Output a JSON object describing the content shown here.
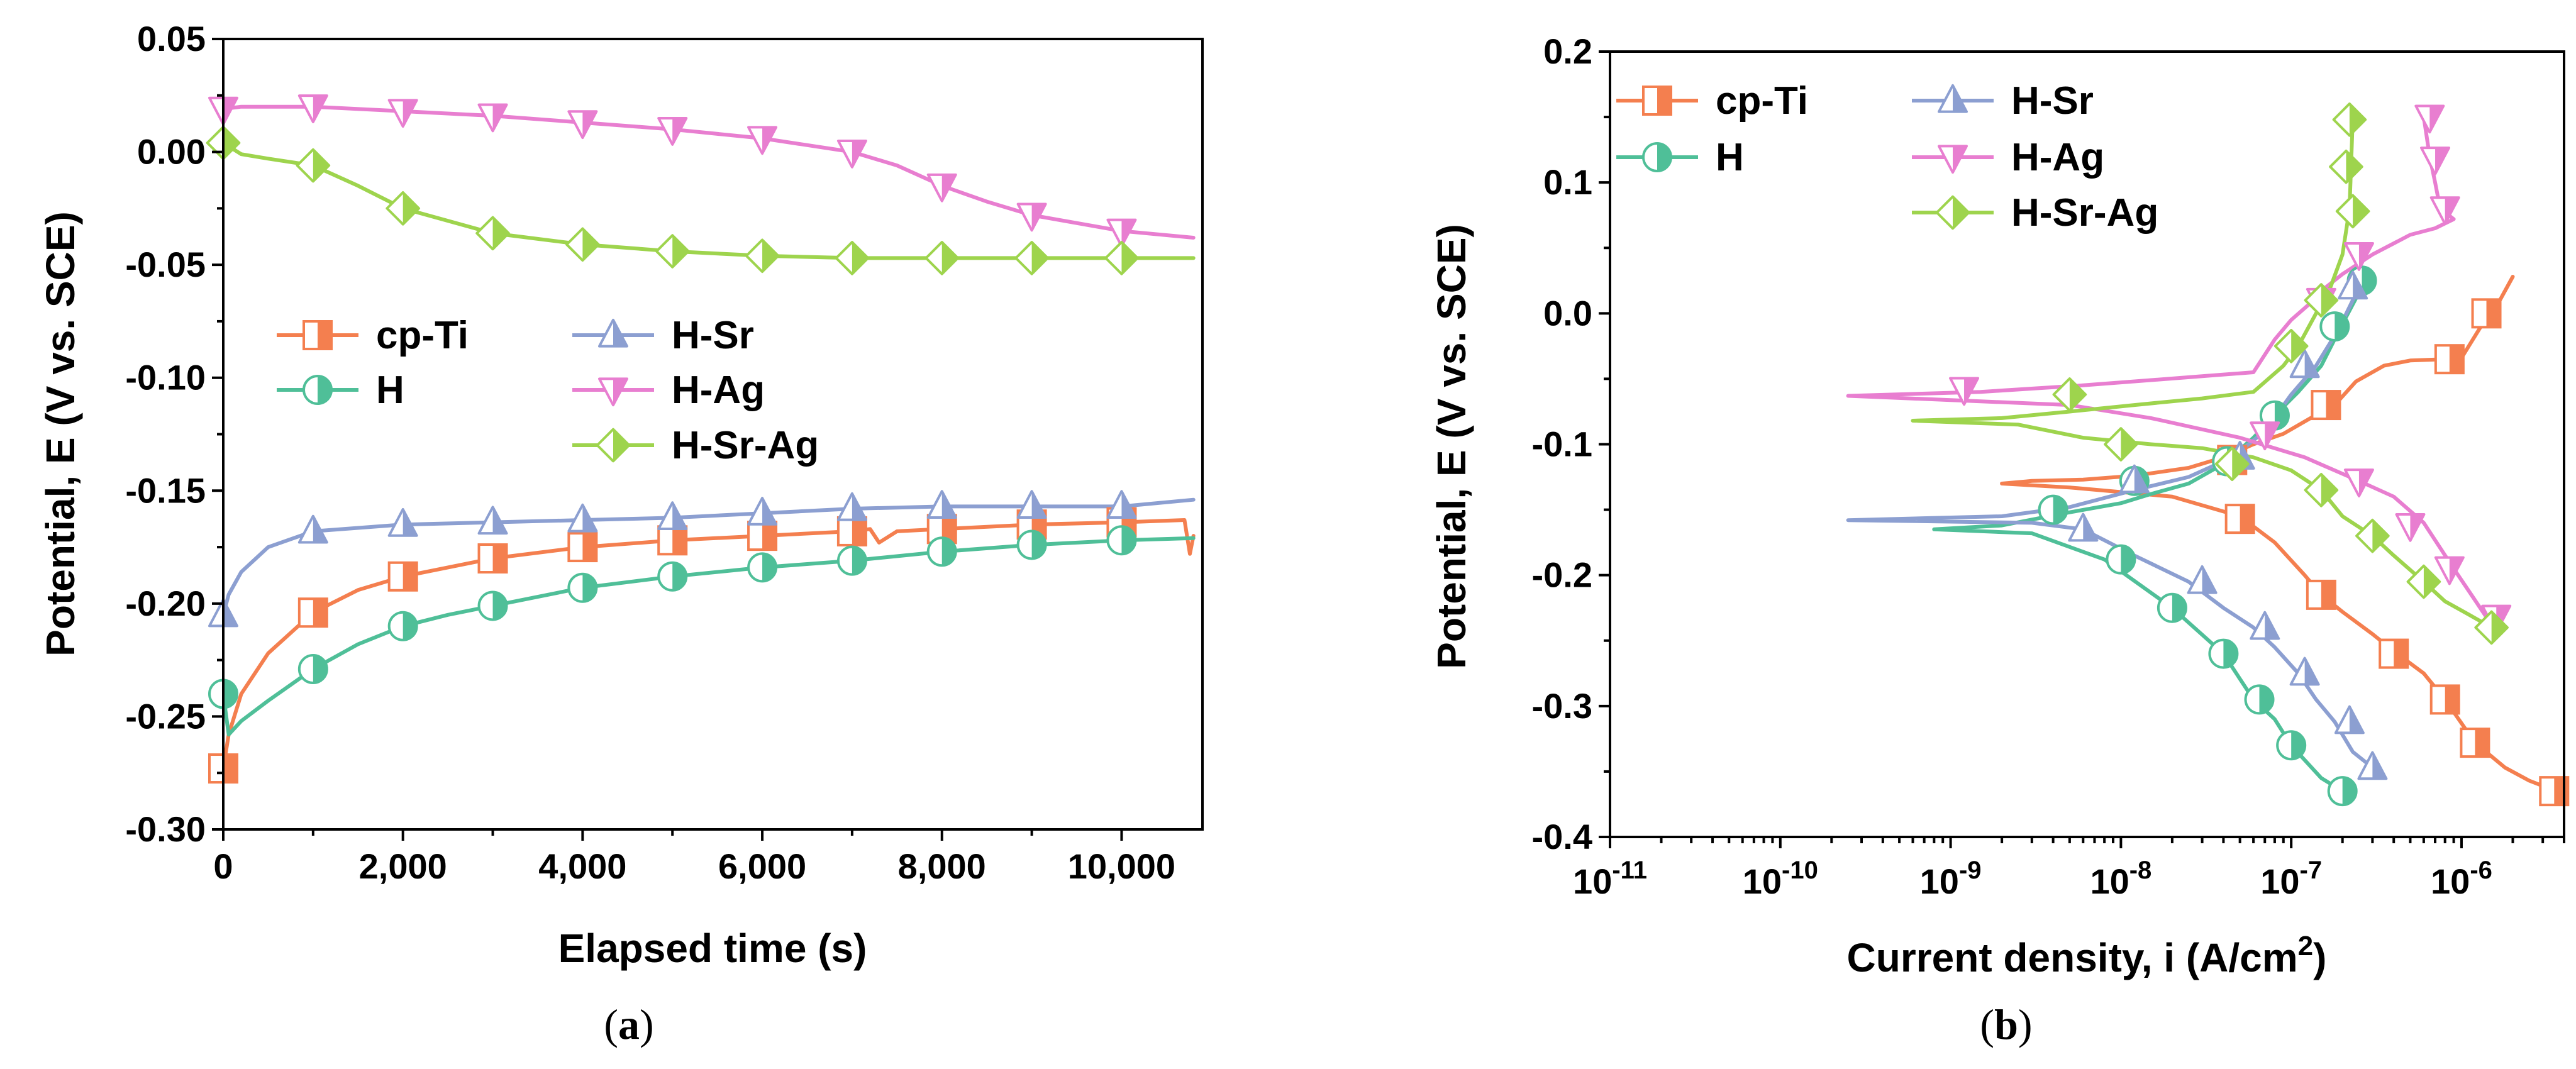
{
  "colors": {
    "cp-Ti": "#f47f4f",
    "H": "#4fbf98",
    "H-Sr": "#8c9fd1",
    "H-Ag": "#e87ed0",
    "H-Sr-Ag": "#9ed44d"
  },
  "panels": [
    {
      "label_open": "(",
      "label_letter": "a",
      "label_close": ")"
    },
    {
      "label_open": "(",
      "label_letter": "b",
      "label_close": ")"
    }
  ],
  "chart_data": [
    {
      "type": "line",
      "xlabel": "Elapsed time (s)",
      "ylabel": "Potential, E (V vs. SCE)",
      "xlim": [
        0,
        10900
      ],
      "ylim": [
        -0.3,
        0.05
      ],
      "xticks": [
        0,
        2000,
        4000,
        6000,
        8000,
        10000
      ],
      "xtick_labels": [
        "0",
        "2,000",
        "4,000",
        "6,000",
        "8,000",
        "10,000"
      ],
      "yticks": [
        -0.3,
        -0.25,
        -0.2,
        -0.15,
        -0.1,
        -0.05,
        0.0,
        0.05
      ],
      "ytick_labels": [
        "-0.30",
        "-0.25",
        "-0.20",
        "-0.15",
        "-0.10",
        "-0.05",
        "0.00",
        "0.05"
      ],
      "grid": false,
      "legend_position": "center-left",
      "series": [
        {
          "name": "cp-Ti",
          "marker": "square",
          "x": [
            0,
            60,
            200,
            500,
            1000,
            1500,
            2000,
            3000,
            4000,
            5000,
            6000,
            7000,
            7200,
            7300,
            7500,
            8000,
            9000,
            10000,
            10700,
            10760,
            10800
          ],
          "y": [
            -0.273,
            -0.258,
            -0.24,
            -0.222,
            -0.204,
            -0.194,
            -0.188,
            -0.18,
            -0.175,
            -0.172,
            -0.17,
            -0.168,
            -0.167,
            -0.173,
            -0.168,
            -0.167,
            -0.165,
            -0.164,
            -0.163,
            -0.178,
            -0.17
          ]
        },
        {
          "name": "H",
          "marker": "circle",
          "x": [
            0,
            60,
            200,
            500,
            1000,
            1500,
            2000,
            2500,
            3000,
            4000,
            5000,
            6000,
            7000,
            8000,
            9000,
            10000,
            10800
          ],
          "y": [
            -0.24,
            -0.258,
            -0.252,
            -0.243,
            -0.229,
            -0.218,
            -0.21,
            -0.205,
            -0.201,
            -0.193,
            -0.188,
            -0.184,
            -0.181,
            -0.177,
            -0.174,
            -0.172,
            -0.171
          ]
        },
        {
          "name": "H-Sr",
          "marker": "triangle-up",
          "x": [
            0,
            60,
            200,
            500,
            1000,
            2000,
            3000,
            4000,
            5000,
            6000,
            7000,
            8000,
            9000,
            10000,
            10800
          ],
          "y": [
            -0.205,
            -0.196,
            -0.186,
            -0.175,
            -0.168,
            -0.165,
            -0.164,
            -0.163,
            -0.162,
            -0.16,
            -0.158,
            -0.157,
            -0.157,
            -0.157,
            -0.154
          ]
        },
        {
          "name": "H-Ag",
          "marker": "triangle-down",
          "x": [
            0,
            200,
            1000,
            2000,
            3000,
            4000,
            5000,
            6000,
            7000,
            7500,
            8000,
            8500,
            9000,
            10000,
            10800
          ],
          "y": [
            0.019,
            0.02,
            0.02,
            0.018,
            0.016,
            0.013,
            0.01,
            0.006,
            0.0,
            -0.006,
            -0.015,
            -0.022,
            -0.028,
            -0.035,
            -0.038
          ]
        },
        {
          "name": "H-Sr-Ag",
          "marker": "diamond",
          "x": [
            0,
            200,
            500,
            1000,
            1500,
            2000,
            3000,
            4000,
            5000,
            6000,
            7000,
            8000,
            9000,
            10000,
            10800
          ],
          "y": [
            0.004,
            -0.001,
            -0.003,
            -0.006,
            -0.015,
            -0.025,
            -0.036,
            -0.041,
            -0.044,
            -0.046,
            -0.047,
            -0.047,
            -0.047,
            -0.047,
            -0.047
          ]
        }
      ],
      "markers": {
        "cp-Ti": {
          "x": [
            0,
            1000,
            2000,
            3000,
            4000,
            5000,
            6000,
            7000,
            8000,
            9000,
            10000
          ],
          "y": [
            -0.273,
            -0.204,
            -0.188,
            -0.18,
            -0.175,
            -0.172,
            -0.17,
            -0.168,
            -0.167,
            -0.165,
            -0.164
          ]
        },
        "H": {
          "x": [
            0,
            1000,
            2000,
            3000,
            4000,
            5000,
            6000,
            7000,
            8000,
            9000,
            10000
          ],
          "y": [
            -0.24,
            -0.229,
            -0.21,
            -0.201,
            -0.193,
            -0.188,
            -0.184,
            -0.181,
            -0.177,
            -0.174,
            -0.172
          ]
        },
        "H-Sr": {
          "x": [
            0,
            1000,
            2000,
            3000,
            4000,
            5000,
            6000,
            7000,
            8000,
            9000,
            10000
          ],
          "y": [
            -0.205,
            -0.168,
            -0.165,
            -0.164,
            -0.163,
            -0.162,
            -0.16,
            -0.158,
            -0.157,
            -0.157,
            -0.157
          ]
        },
        "H-Ag": {
          "x": [
            0,
            1000,
            2000,
            3000,
            4000,
            5000,
            6000,
            7000,
            8000,
            9000,
            10000
          ],
          "y": [
            0.019,
            0.02,
            0.018,
            0.016,
            0.013,
            0.01,
            0.006,
            0.0,
            -0.015,
            -0.028,
            -0.035
          ]
        },
        "H-Sr-Ag": {
          "x": [
            0,
            1000,
            2000,
            3000,
            4000,
            5000,
            6000,
            7000,
            8000,
            9000,
            10000
          ],
          "y": [
            0.004,
            -0.006,
            -0.025,
            -0.036,
            -0.041,
            -0.044,
            -0.046,
            -0.047,
            -0.047,
            -0.047,
            -0.047
          ]
        }
      }
    },
    {
      "type": "line",
      "xlabel_main": "Current density, i (A/cm",
      "xlabel_sup": "2",
      "xlabel_end": ")",
      "ylabel": "Potential, E (V vs. SCE)",
      "xscale": "log",
      "xlim": [
        1e-11,
        4e-06
      ],
      "ylim": [
        -0.4,
        0.2
      ],
      "xtick_exponents": [
        -11,
        -10,
        -9,
        -8,
        -7,
        -6
      ],
      "xtick_base": "10",
      "yticks": [
        -0.4,
        -0.3,
        -0.2,
        -0.1,
        0.0,
        0.1,
        0.2
      ],
      "ytick_labels": [
        "-0.4",
        "-0.3",
        "-0.2",
        "-0.1",
        "0.0",
        "0.1",
        "0.2"
      ],
      "grid": false,
      "legend_position": "top-left",
      "series": [
        {
          "name": "cp-Ti",
          "marker": "square",
          "x": [
            3.6e-06,
            2.5e-06,
            1.8e-06,
            1.2e-06,
            8e-07,
            6e-07,
            4e-07,
            3e-07,
            2e-07,
            1.5e-07,
            1.2e-07,
            8e-08,
            5e-08,
            2e-08,
            5e-09,
            2e-09,
            3e-09,
            6e-09,
            1.2e-08,
            2.5e-08,
            4e-08,
            6e-08,
            9e-08,
            1.3e-07,
            1.8e-07,
            2.4e-07,
            3.5e-07,
            5e-07,
            8e-07,
            1e-06,
            1.3e-06,
            1.6e-06,
            2e-06
          ],
          "y": [
            -0.365,
            -0.357,
            -0.347,
            -0.328,
            -0.295,
            -0.275,
            -0.258,
            -0.245,
            -0.228,
            -0.215,
            -0.2,
            -0.175,
            -0.155,
            -0.14,
            -0.133,
            -0.13,
            -0.128,
            -0.127,
            -0.124,
            -0.118,
            -0.11,
            -0.1,
            -0.092,
            -0.08,
            -0.07,
            -0.052,
            -0.04,
            -0.036,
            -0.035,
            -0.034,
            -0.01,
            0.005,
            0.028
          ]
        },
        {
          "name": "H",
          "marker": "circle",
          "x": [
            2e-07,
            1.5e-07,
            1e-07,
            8e-08,
            6e-08,
            4e-08,
            2e-08,
            8e-09,
            3e-09,
            8e-10,
            2e-09,
            5e-09,
            1e-08,
            1.5e-08,
            2.5e-08,
            4e-08,
            6e-08,
            8e-08,
            1.1e-07,
            1.5e-07,
            2e-07,
            2.6e-07,
            2.7e-07
          ],
          "y": [
            -0.365,
            -0.355,
            -0.33,
            -0.31,
            -0.295,
            -0.26,
            -0.225,
            -0.188,
            -0.168,
            -0.165,
            -0.162,
            -0.152,
            -0.145,
            -0.138,
            -0.13,
            -0.115,
            -0.095,
            -0.078,
            -0.06,
            -0.04,
            -0.008,
            0.02,
            0.028
          ]
        },
        {
          "name": "H-Sr",
          "marker": "triangle-up",
          "x": [
            3e-07,
            2.3e-07,
            1.8e-07,
            1.4e-07,
            1.1e-07,
            8e-08,
            6e-08,
            4e-08,
            2.5e-08,
            1.2e-08,
            6e-09,
            3e-09,
            2.5e-10,
            2e-09,
            5e-09,
            1.2e-08,
            2.5e-08,
            4.5e-08,
            7e-08,
            1e-07,
            1.4e-07,
            1.9e-07,
            2.4e-07,
            2.6e-07
          ],
          "y": [
            -0.347,
            -0.335,
            -0.312,
            -0.295,
            -0.275,
            -0.255,
            -0.24,
            -0.225,
            -0.205,
            -0.185,
            -0.165,
            -0.16,
            -0.158,
            -0.155,
            -0.148,
            -0.135,
            -0.125,
            -0.11,
            -0.09,
            -0.062,
            -0.04,
            -0.012,
            0.015,
            0.025
          ]
        },
        {
          "name": "H-Ag",
          "marker": "triangle-down",
          "x": [
            1.7e-06,
            1.4e-06,
            9e-07,
            6e-07,
            4e-07,
            2.5e-07,
            1.2e-07,
            5e-08,
            1.5e-08,
            5e-09,
            2.5e-10,
            1.5e-09,
            6e-09,
            3e-08,
            6e-08,
            8e-08,
            1e-07,
            1.3e-07,
            1.6e-07,
            2e-07,
            3e-07,
            5e-07,
            7e-07,
            9e-07,
            7.5e-07,
            7e-07,
            6.5e-07,
            6e-07
          ],
          "y": [
            -0.232,
            -0.232,
            -0.195,
            -0.16,
            -0.14,
            -0.128,
            -0.11,
            -0.095,
            -0.08,
            -0.07,
            -0.063,
            -0.06,
            -0.055,
            -0.048,
            -0.045,
            -0.02,
            -0.005,
            0.008,
            0.02,
            0.03,
            0.045,
            0.06,
            0.065,
            0.072,
            0.08,
            0.1,
            0.12,
            0.15
          ]
        },
        {
          "name": "H-Sr-Ag",
          "marker": "diamond",
          "x": [
            1.5e-06,
            1.1e-06,
            8e-07,
            6e-07,
            4e-07,
            3e-07,
            2e-07,
            1.5e-07,
            1e-07,
            6e-08,
            3e-08,
            1.5e-08,
            6e-09,
            2.5e-09,
            6e-10,
            2e-09,
            5e-09,
            1.2e-08,
            3e-08,
            6e-08,
            9e-08,
            1.1e-07,
            1.4e-07,
            1.7e-07,
            2e-07,
            2.2e-07,
            2.3e-07
          ],
          "y": [
            -0.24,
            -0.23,
            -0.22,
            -0.205,
            -0.185,
            -0.17,
            -0.155,
            -0.135,
            -0.12,
            -0.11,
            -0.103,
            -0.1,
            -0.095,
            -0.085,
            -0.082,
            -0.08,
            -0.075,
            -0.07,
            -0.065,
            -0.06,
            -0.04,
            -0.025,
            0.0,
            0.02,
            0.045,
            0.08,
            0.15
          ]
        }
      ],
      "markers": {
        "cp-Ti": {
          "x": [
            3.5e-06,
            1.2e-06,
            8e-07,
            4e-07,
            1.5e-07,
            5e-08,
            4.5e-08,
            1.6e-07,
            8.5e-07,
            1.4e-06
          ],
          "y": [
            -0.365,
            -0.328,
            -0.295,
            -0.26,
            -0.215,
            -0.157,
            -0.112,
            -0.07,
            -0.035,
            0.0
          ]
        },
        "H": {
          "x": [
            2e-07,
            1e-07,
            6.5e-08,
            4e-08,
            2e-08,
            1e-08,
            4e-09,
            1.2e-08,
            4.2e-08,
            8e-08,
            1.8e-07,
            2.6e-07
          ],
          "y": [
            -0.365,
            -0.33,
            -0.295,
            -0.26,
            -0.225,
            -0.188,
            -0.15,
            -0.128,
            -0.113,
            -0.078,
            -0.01,
            0.025
          ]
        },
        "H-Sr": {
          "x": [
            3e-07,
            2.2e-07,
            1.2e-07,
            7e-08,
            3e-08,
            6e-09,
            1.2e-08,
            5e-08,
            1.2e-07,
            2.3e-07
          ],
          "y": [
            -0.347,
            -0.312,
            -0.275,
            -0.24,
            -0.205,
            -0.165,
            -0.128,
            -0.11,
            -0.04,
            0.02
          ]
        },
        "H-Ag": {
          "x": [
            1.6e-06,
            8.5e-07,
            5e-07,
            2.5e-07,
            7e-08,
            1.2e-09,
            1.5e-07,
            2.5e-07,
            8e-07,
            7e-07,
            6.5e-07
          ],
          "y": [
            -0.232,
            -0.195,
            -0.162,
            -0.128,
            -0.092,
            -0.058,
            0.01,
            0.045,
            0.08,
            0.118,
            0.15
          ]
        },
        "H-Sr-Ag": {
          "x": [
            1.5e-06,
            6e-07,
            3e-07,
            1.5e-07,
            4.5e-08,
            1e-08,
            5e-09,
            1e-07,
            1.5e-07,
            2.3e-07,
            2.1e-07,
            2.2e-07
          ],
          "y": [
            -0.24,
            -0.205,
            -0.17,
            -0.135,
            -0.115,
            -0.1,
            -0.062,
            -0.025,
            0.01,
            0.078,
            0.112,
            0.148
          ]
        }
      }
    }
  ]
}
